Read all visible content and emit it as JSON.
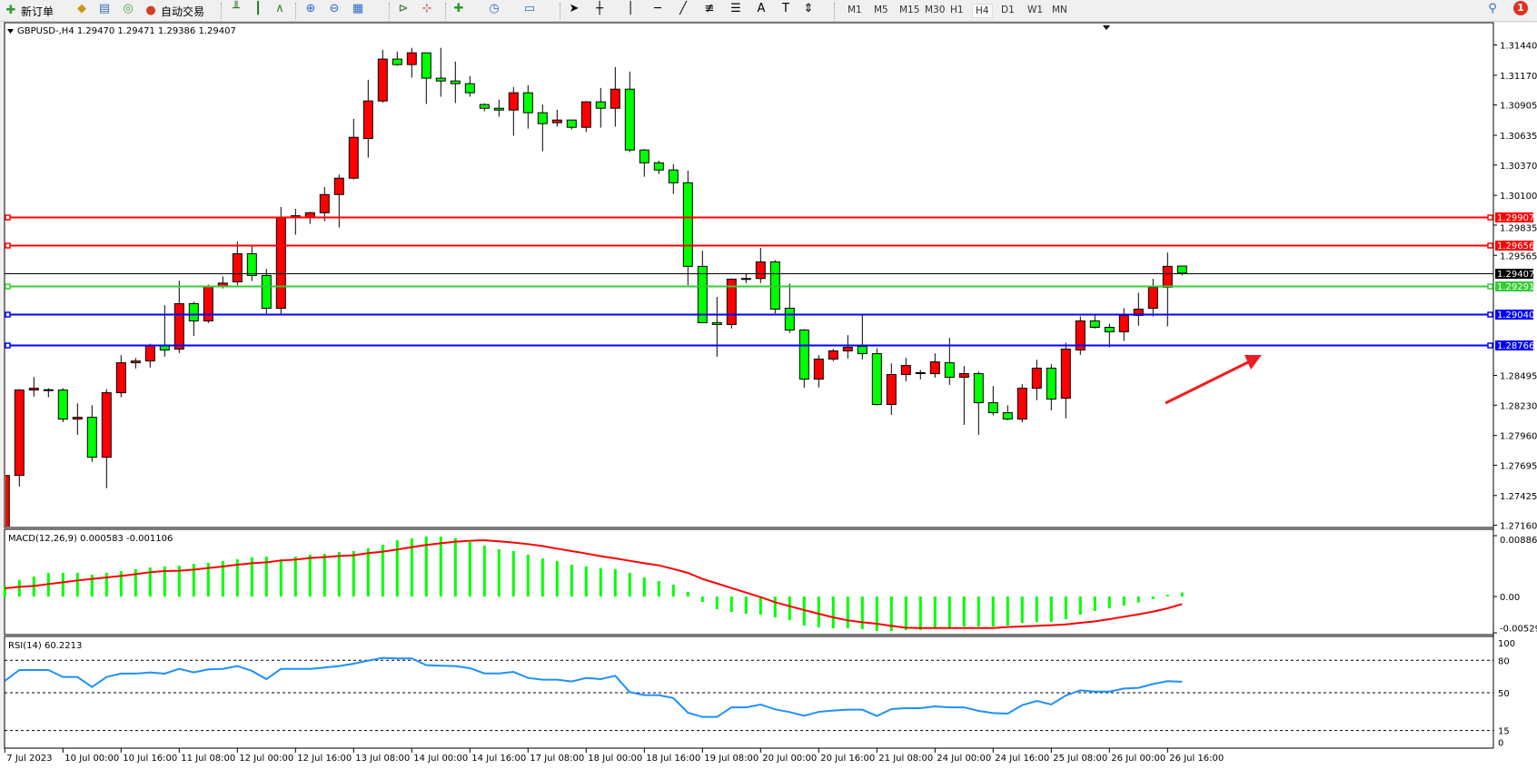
{
  "toolbar": {
    "new_order": "新订单",
    "auto_trading": "自动交易",
    "timeframes": [
      "M1",
      "M5",
      "M15",
      "M30",
      "H1",
      "H4",
      "D1",
      "W1",
      "MN"
    ],
    "active_timeframe": "H4",
    "notification_count": "1"
  },
  "chart": {
    "title": "GBPUSD-,H4  1.29470 1.29471 1.29386 1.29407",
    "up_color": "#ff0000",
    "down_color": "#00ff00",
    "price_labels": [
      "1.31440",
      "1.31170",
      "1.30905",
      "1.30635",
      "1.30370",
      "1.30100",
      "1.29835",
      "1.29565",
      "1.28495",
      "1.28230",
      "1.27960",
      "1.27695",
      "1.27425",
      "1.27160"
    ],
    "levels": [
      {
        "price": "1.29907",
        "color": "#ff0000"
      },
      {
        "price": "1.29656",
        "color": "#ff0000"
      },
      {
        "price": "1.29407",
        "color": "#000000",
        "current": true
      },
      {
        "price": "1.29291",
        "color": "#32cd32"
      },
      {
        "price": "1.29040",
        "color": "#0000ff"
      },
      {
        "price": "1.28766",
        "color": "#0000ff"
      }
    ],
    "annotation_arrow": {
      "color": "#ee1c24",
      "direction": "up-right"
    },
    "time_labels": [
      "7 Jul 2023",
      "10 Jul 00:00",
      "10 Jul 16:00",
      "11 Jul 08:00",
      "12 Jul 00:00",
      "12 Jul 16:00",
      "13 Jul 08:00",
      "14 Jul 00:00",
      "14 Jul 16:00",
      "17 Jul 08:00",
      "18 Jul 00:00",
      "18 Jul 16:00",
      "19 Jul 08:00",
      "20 Jul 00:00",
      "20 Jul 16:00",
      "21 Jul 08:00",
      "24 Jul 00:00",
      "24 Jul 16:00",
      "25 Jul 08:00",
      "26 Jul 00:00",
      "26 Jul 16:00"
    ]
  },
  "chart_data": [
    {
      "type": "candlestick",
      "title": "GBPUSD-,H4",
      "ylim": [
        1.2705,
        1.3164
      ],
      "fields": [
        "open",
        "high",
        "low",
        "close"
      ],
      "candles": [
        [
          1.271,
          1.27712,
          1.2705,
          1.27604
        ],
        [
          1.27604,
          1.28373,
          1.27504,
          1.28365
        ],
        [
          1.28365,
          1.28481,
          1.28306,
          1.28381
        ],
        [
          1.28368,
          1.28381,
          1.28301,
          1.28365
        ],
        [
          1.28365,
          1.28381,
          1.28079,
          1.28106
        ],
        [
          1.28106,
          1.28247,
          1.27966,
          1.28122
        ],
        [
          1.28122,
          1.2823,
          1.27725,
          1.27766
        ],
        [
          1.27766,
          1.28373,
          1.27491,
          1.28341
        ],
        [
          1.28341,
          1.28676,
          1.28301,
          1.28608
        ],
        [
          1.28608,
          1.28651,
          1.28557,
          1.28624
        ],
        [
          1.28624,
          1.28778,
          1.28565,
          1.28765
        ],
        [
          1.28765,
          1.29121,
          1.28662,
          1.28722
        ],
        [
          1.2873,
          1.2934,
          1.28695,
          1.29135
        ],
        [
          1.29135,
          1.29151,
          1.28846,
          1.28981
        ],
        [
          1.28981,
          1.29305,
          1.28962,
          1.29291
        ],
        [
          1.29291,
          1.29378,
          1.2927,
          1.29318
        ],
        [
          1.29329,
          1.29688,
          1.29299,
          1.2958
        ],
        [
          1.2958,
          1.29656,
          1.29337,
          1.29386
        ],
        [
          1.29386,
          1.29445,
          1.29048,
          1.29094
        ],
        [
          1.29094,
          1.29996,
          1.2903,
          1.29899
        ],
        [
          1.29899,
          1.2998,
          1.29748,
          1.29918
        ],
        [
          1.29907,
          1.29953,
          1.29845,
          1.29945
        ],
        [
          1.29945,
          1.30174,
          1.29869,
          1.30107
        ],
        [
          1.30107,
          1.30285,
          1.29813,
          1.30253
        ],
        [
          1.30253,
          1.30782,
          1.30242,
          1.30617
        ],
        [
          1.30606,
          1.3113,
          1.30436,
          1.30941
        ],
        [
          1.30941,
          1.31397,
          1.30925,
          1.31314
        ],
        [
          1.31314,
          1.31381,
          1.31254,
          1.31265
        ],
        [
          1.31265,
          1.31414,
          1.31149,
          1.3137
        ],
        [
          1.3137,
          1.3137,
          1.30914,
          1.31144
        ],
        [
          1.31144,
          1.31414,
          1.30979,
          1.31119
        ],
        [
          1.31119,
          1.31292,
          1.30922,
          1.31095
        ],
        [
          1.31095,
          1.31163,
          1.30979,
          1.31014
        ],
        [
          1.30909,
          1.3092,
          1.30849,
          1.30876
        ],
        [
          1.30876,
          1.30952,
          1.30801,
          1.3086
        ],
        [
          1.3086,
          1.31065,
          1.30631,
          1.31014
        ],
        [
          1.31014,
          1.31082,
          1.30695,
          1.30836
        ],
        [
          1.30836,
          1.30909,
          1.30493,
          1.30739
        ],
        [
          1.30747,
          1.30863,
          1.30712,
          1.30771
        ],
        [
          1.30771,
          1.30771,
          1.30687,
          1.30706
        ],
        [
          1.30706,
          1.30941,
          1.30663,
          1.30933
        ],
        [
          1.30933,
          1.31057,
          1.30703,
          1.30876
        ],
        [
          1.30876,
          1.31243,
          1.30712,
          1.31046
        ],
        [
          1.31046,
          1.31203,
          1.30485,
          1.30504
        ],
        [
          1.30504,
          1.30514,
          1.30266,
          1.3039
        ],
        [
          1.3039,
          1.30409,
          1.3029,
          1.30326
        ],
        [
          1.30326,
          1.30377,
          1.30112,
          1.30212
        ],
        [
          1.30212,
          1.3032,
          1.293,
          1.29467
        ],
        [
          1.29467,
          1.29607,
          1.28965,
          1.28965
        ],
        [
          1.28965,
          1.29194,
          1.28662,
          1.28949
        ],
        [
          1.28949,
          1.29361,
          1.28913,
          1.29353
        ],
        [
          1.29353,
          1.29399,
          1.29318,
          1.29359
        ],
        [
          1.29359,
          1.29632,
          1.29318,
          1.29507
        ],
        [
          1.29507,
          1.29523,
          1.29048,
          1.29086
        ],
        [
          1.29094,
          1.29313,
          1.28873,
          1.289
        ],
        [
          1.289,
          1.28908,
          1.28387,
          1.28462
        ],
        [
          1.28462,
          1.28676,
          1.28387,
          1.28641
        ],
        [
          1.28641,
          1.28732,
          1.28622,
          1.28714
        ],
        [
          1.28714,
          1.28854,
          1.28646,
          1.28746
        ],
        [
          1.28754,
          1.29038,
          1.28638,
          1.28689
        ],
        [
          1.28689,
          1.28738,
          1.28228,
          1.28236
        ],
        [
          1.28236,
          1.28603,
          1.28144,
          1.28503
        ],
        [
          1.28503,
          1.28652,
          1.28444,
          1.28584
        ],
        [
          1.2852,
          1.28544,
          1.2846,
          1.28517
        ],
        [
          1.28511,
          1.28692,
          1.28476,
          1.28616
        ],
        [
          1.28608,
          1.2883,
          1.28411,
          1.28479
        ],
        [
          1.28479,
          1.28579,
          1.28055,
          1.28511
        ],
        [
          1.28511,
          1.2853,
          1.27966,
          1.28252
        ],
        [
          1.28252,
          1.28401,
          1.28139,
          1.28163
        ],
        [
          1.28163,
          1.2823,
          1.28095,
          1.28106
        ],
        [
          1.28106,
          1.28417,
          1.28079,
          1.28381
        ],
        [
          1.28381,
          1.28635,
          1.28274,
          1.2856
        ],
        [
          1.2856,
          1.28595,
          1.28184,
          1.28284
        ],
        [
          1.28292,
          1.28786,
          1.28112,
          1.2873
        ],
        [
          1.28722,
          1.29021,
          1.28678,
          1.28981
        ],
        [
          1.28981,
          1.29038,
          1.28913,
          1.28924
        ],
        [
          1.28924,
          1.28957,
          1.28746,
          1.28884
        ],
        [
          1.28884,
          1.29094,
          1.28803,
          1.2903
        ],
        [
          1.2903,
          1.29232,
          1.28938,
          1.29086
        ],
        [
          1.29094,
          1.29356,
          1.29021,
          1.29281
        ],
        [
          1.29281,
          1.29591,
          1.28932,
          1.29467
        ],
        [
          1.2947,
          1.29471,
          1.29386,
          1.29407
        ]
      ]
    },
    {
      "type": "bar+line",
      "title": "MACD(12,26,9) 0.000583 -0.001106",
      "ylim": [
        -0.005294,
        0.008861
      ],
      "tick_labels": [
        "0.008861",
        "0.00",
        "-0.005294"
      ],
      "histogram_color": "#00ff00",
      "signal_color": "#ff0000",
      "histogram": [
        0.00159,
        0.00238,
        0.00291,
        0.00344,
        0.00344,
        0.00344,
        0.00318,
        0.00344,
        0.0037,
        0.00397,
        0.00423,
        0.00437,
        0.0045,
        0.00476,
        0.0049,
        0.00516,
        0.00542,
        0.00569,
        0.00582,
        0.00542,
        0.00582,
        0.00609,
        0.00622,
        0.00648,
        0.00662,
        0.00701,
        0.00754,
        0.0082,
        0.00847,
        0.00873,
        0.00873,
        0.00851,
        0.00794,
        0.00741,
        0.00688,
        0.00662,
        0.00609,
        0.00556,
        0.00516,
        0.00463,
        0.00437,
        0.0041,
        0.00397,
        0.00344,
        0.00278,
        0.00225,
        0.00172,
        0.00066,
        -0.00079,
        -0.00185,
        -0.00225,
        -0.00251,
        -0.00265,
        -0.00304,
        -0.00344,
        -0.00423,
        -0.0045,
        -0.00463,
        -0.00463,
        -0.00476,
        -0.00503,
        -0.00503,
        -0.0049,
        -0.0049,
        -0.00463,
        -0.0045,
        -0.00437,
        -0.00437,
        -0.00437,
        -0.00423,
        -0.00384,
        -0.0037,
        -0.0037,
        -0.00331,
        -0.00265,
        -0.00212,
        -0.00172,
        -0.00132,
        -0.00088,
        -0.0004,
        0.00026,
        0.000583
      ],
      "signal": [
        0.00119,
        0.00141,
        0.00154,
        0.00181,
        0.00207,
        0.00234,
        0.00256,
        0.00278,
        0.003,
        0.00326,
        0.00353,
        0.0037,
        0.00375,
        0.00392,
        0.00415,
        0.00437,
        0.00463,
        0.00485,
        0.00498,
        0.00525,
        0.00538,
        0.0056,
        0.00573,
        0.00591,
        0.006,
        0.00631,
        0.00653,
        0.00684,
        0.00719,
        0.0075,
        0.00776,
        0.00798,
        0.00811,
        0.0082,
        0.00803,
        0.00785,
        0.00763,
        0.00736,
        0.00697,
        0.00662,
        0.00626,
        0.00587,
        0.00556,
        0.0052,
        0.00485,
        0.00454,
        0.00401,
        0.00344,
        0.00256,
        0.0019,
        0.00123,
        0.00057,
        -9e-05,
        -0.00084,
        -0.00141,
        -0.00198,
        -0.00251,
        -0.00304,
        -0.00348,
        -0.00375,
        -0.00397,
        -0.00428,
        -0.00454,
        -0.00459,
        -0.00459,
        -0.00459,
        -0.00459,
        -0.00459,
        -0.00459,
        -0.00445,
        -0.00437,
        -0.00428,
        -0.00419,
        -0.00406,
        -0.00384,
        -0.00362,
        -0.00331,
        -0.00295,
        -0.0026,
        -0.00221,
        -0.00172,
        -0.001106
      ]
    },
    {
      "type": "line",
      "title": "RSI(14) 60.2213",
      "ylim": [
        0,
        100
      ],
      "tick_labels": [
        "100",
        "80",
        "50",
        "15",
        "0"
      ],
      "levels": [
        80,
        50,
        15
      ],
      "color": "#1e90ff",
      "values": [
        61,
        71,
        71,
        71,
        64.6,
        64.6,
        55.3,
        64.6,
        67.7,
        67.7,
        68.8,
        67.7,
        72.1,
        68.8,
        71.6,
        72.1,
        74.7,
        70.2,
        62.6,
        72.1,
        72.1,
        72.1,
        73.3,
        74.7,
        76.9,
        79.7,
        82.2,
        81.7,
        81.7,
        75.5,
        75,
        74.7,
        72.7,
        67.9,
        67.9,
        69.3,
        63.7,
        62.1,
        62.1,
        60.4,
        63.7,
        62.6,
        65.7,
        50.6,
        47.8,
        47.8,
        45,
        31.5,
        27.6,
        27.6,
        36.5,
        36.5,
        39.1,
        34.6,
        32.1,
        28.7,
        32.3,
        33.5,
        34.3,
        34.3,
        28.4,
        34.9,
        35.7,
        35.7,
        37.4,
        36.5,
        36.5,
        33.2,
        31.2,
        30.7,
        38.5,
        42.4,
        39.1,
        47.5,
        52.2,
        51.1,
        51.1,
        53.9,
        54.5,
        58.1,
        60.7,
        60.2213
      ]
    }
  ]
}
